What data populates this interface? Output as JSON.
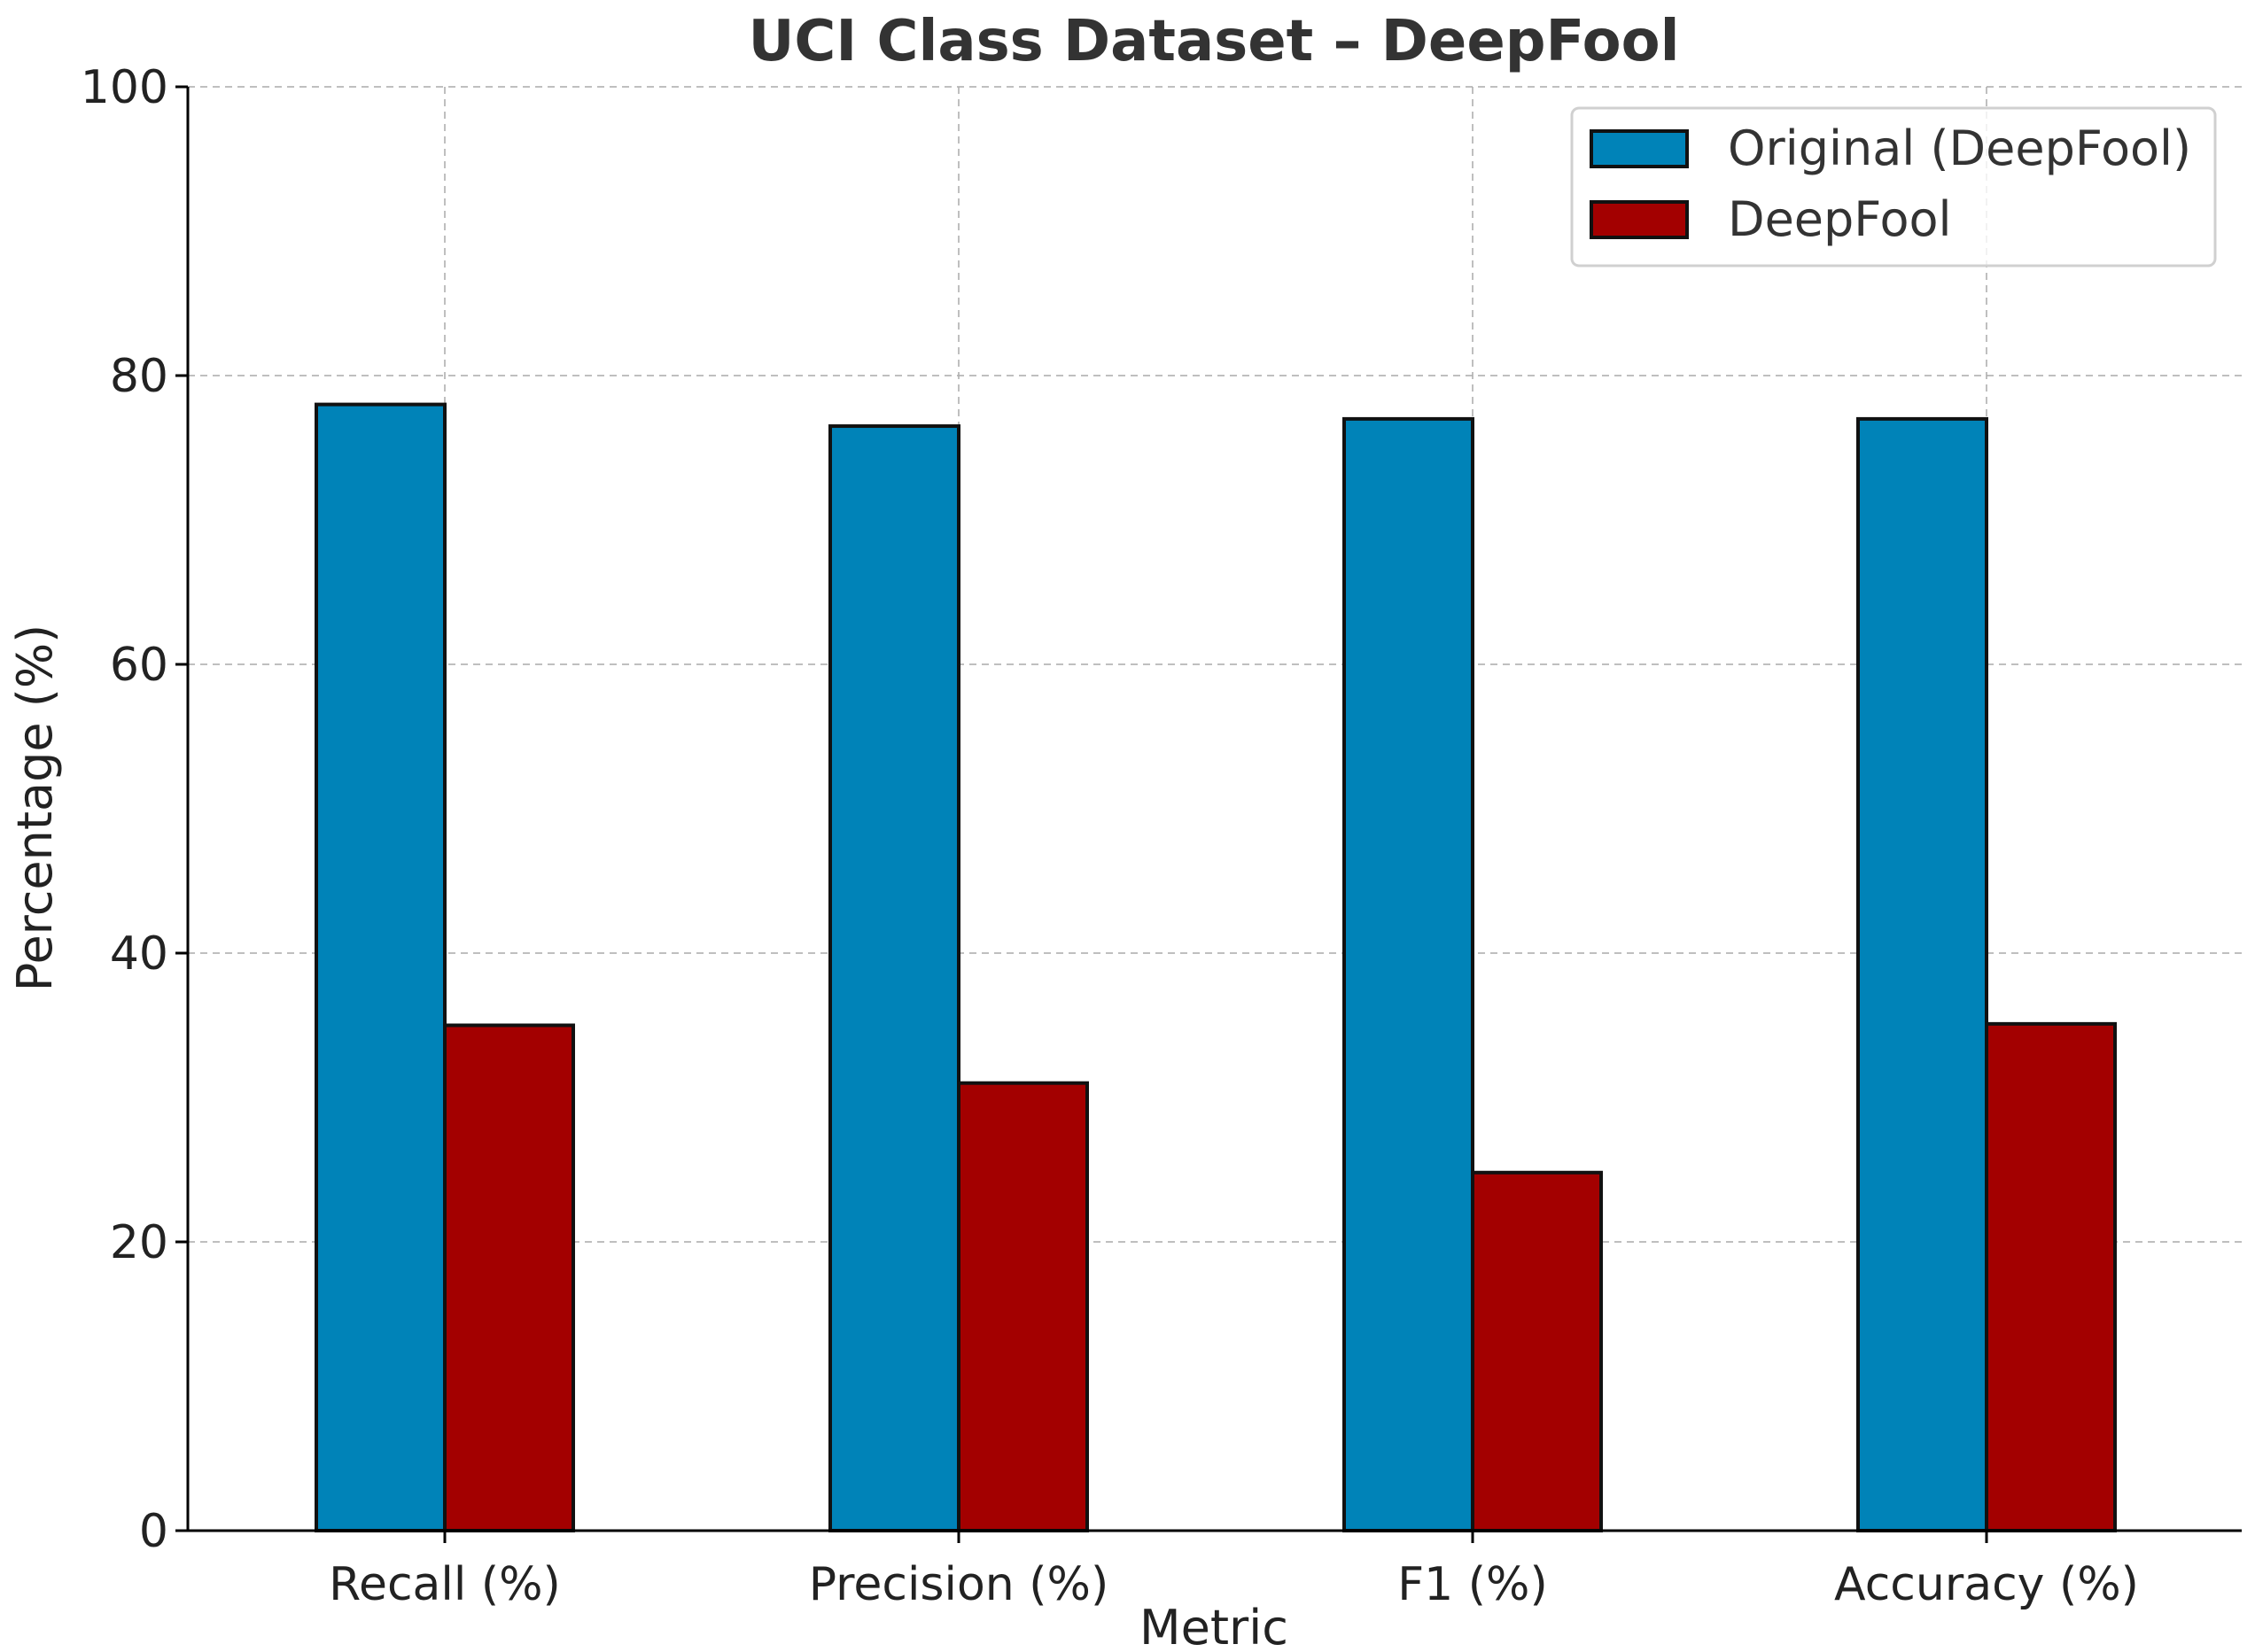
{
  "chart_data": {
    "type": "bar",
    "title": "UCI Class Dataset – DeepFool",
    "xlabel": "Metric",
    "ylabel": "Percentage (%)",
    "categories": [
      "Recall (%)",
      "Precision (%)",
      "F1 (%)",
      "Accuracy (%)"
    ],
    "series": [
      {
        "name": "Original (DeepFool)",
        "color": "#0083b8",
        "values": [
          78,
          76.5,
          77,
          77
        ]
      },
      {
        "name": "DeepFool",
        "color": "#a30000",
        "values": [
          35,
          31,
          24.8,
          35.1
        ]
      }
    ],
    "ylim": [
      0,
      100
    ],
    "yticks": [
      0,
      20,
      40,
      60,
      80,
      100
    ],
    "grid": true,
    "legend_position": "top-right"
  }
}
